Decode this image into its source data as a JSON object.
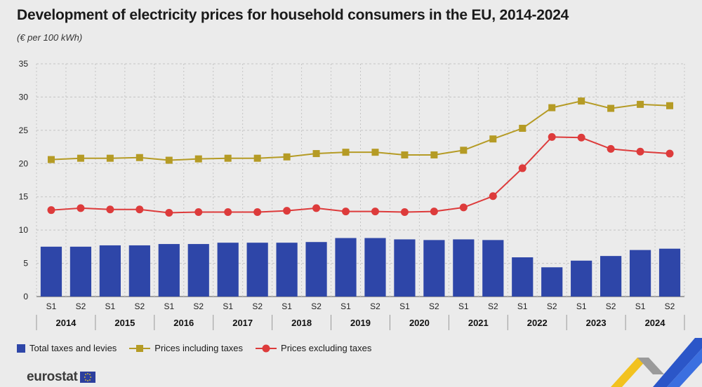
{
  "title": "Development of electricity prices for household consumers in the EU, 2014-2024",
  "subtitle": "(€ per 100 kWh)",
  "brand": "eurostat",
  "colors": {
    "bars": "#2e46a8",
    "incl": "#b59b25",
    "excl": "#dd3b3b"
  },
  "chart_data": {
    "type": "bar",
    "semesters": [
      "S1",
      "S2",
      "S1",
      "S2",
      "S1",
      "S2",
      "S1",
      "S2",
      "S1",
      "S2",
      "S1",
      "S2",
      "S1",
      "S2",
      "S1",
      "S2",
      "S1",
      "S2",
      "S1",
      "S2",
      "S1",
      "S2"
    ],
    "years": [
      "2014",
      "2015",
      "2016",
      "2017",
      "2018",
      "2019",
      "2020",
      "2021",
      "2022",
      "2023",
      "2024"
    ],
    "ylim": [
      0,
      35
    ],
    "yticks": [
      0,
      5,
      10,
      15,
      20,
      25,
      30,
      35
    ],
    "grid": true,
    "legend_position": "bottom-left",
    "series": [
      {
        "name": "Total taxes and levies",
        "kind": "bar",
        "values": [
          7.5,
          7.5,
          7.7,
          7.7,
          7.9,
          7.9,
          8.1,
          8.1,
          8.1,
          8.2,
          8.8,
          8.8,
          8.6,
          8.5,
          8.6,
          8.5,
          5.9,
          4.4,
          5.4,
          6.1,
          7.0,
          7.2
        ]
      },
      {
        "name": "Prices including taxes",
        "kind": "line-square",
        "values": [
          20.6,
          20.8,
          20.8,
          20.9,
          20.5,
          20.7,
          20.8,
          20.8,
          21.0,
          21.5,
          21.7,
          21.7,
          21.3,
          21.3,
          22.0,
          23.7,
          25.3,
          28.4,
          29.4,
          28.3,
          28.9,
          28.7
        ]
      },
      {
        "name": "Prices excluding taxes",
        "kind": "line-circle",
        "values": [
          13.0,
          13.3,
          13.1,
          13.1,
          12.6,
          12.7,
          12.7,
          12.7,
          12.9,
          13.3,
          12.8,
          12.8,
          12.7,
          12.8,
          13.4,
          15.1,
          19.3,
          24.0,
          23.9,
          22.2,
          21.8,
          21.5
        ]
      }
    ]
  }
}
